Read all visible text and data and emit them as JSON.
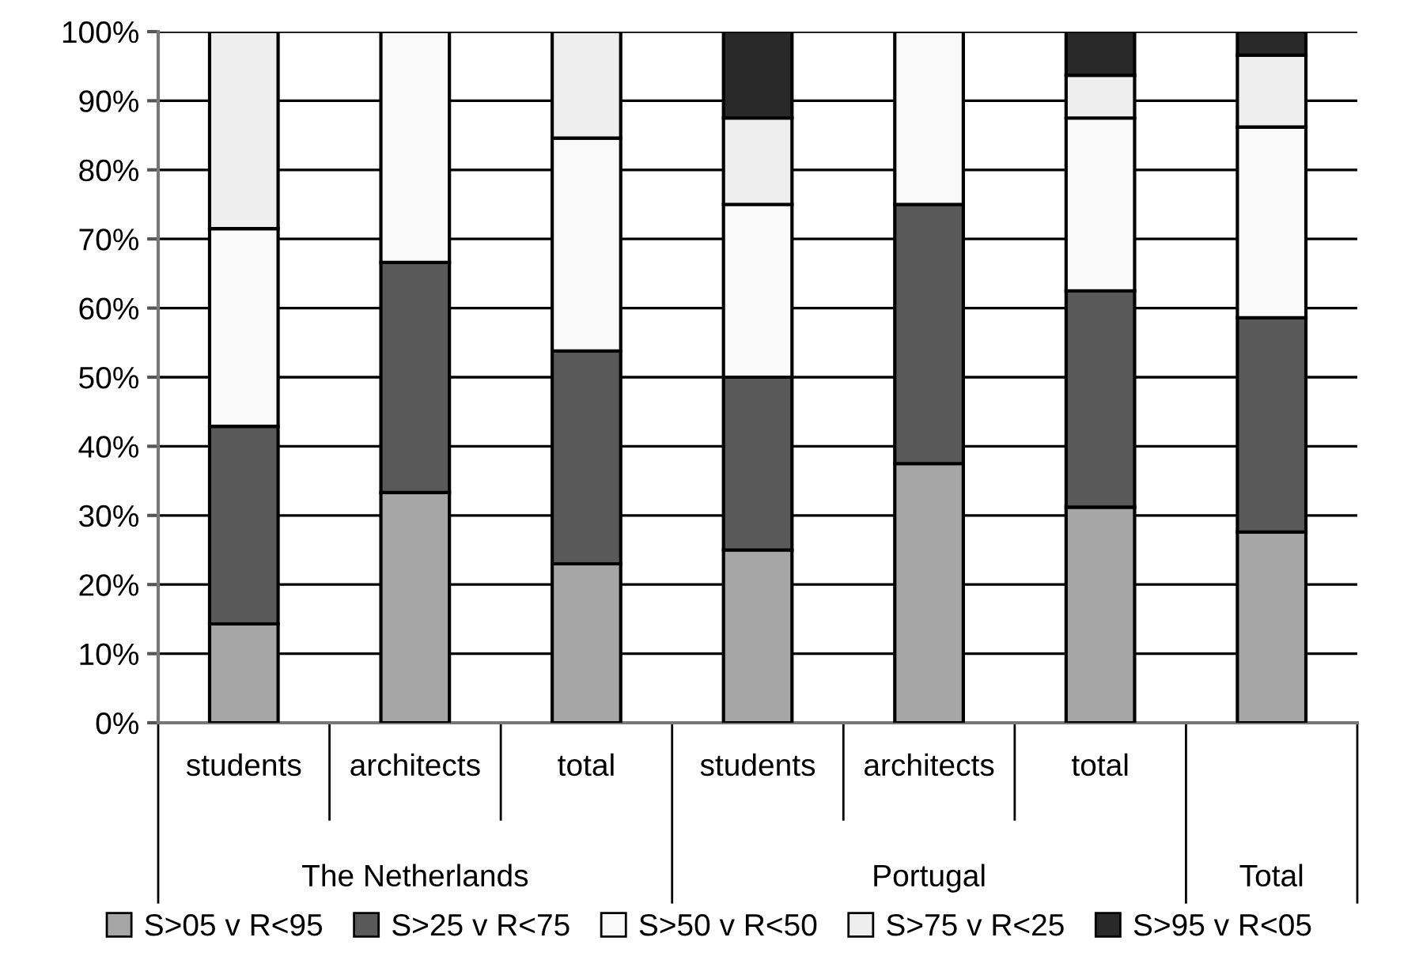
{
  "chart_data": {
    "type": "bar",
    "stacked": true,
    "categories": [
      "students",
      "architects",
      "total",
      "students",
      "architects",
      "total",
      null
    ],
    "annotations": [
      "The Netherlands",
      "Portugal",
      "Total"
    ],
    "series": [
      {
        "name": "S>05 v R<95",
        "color": "#a6a6a6",
        "values": [
          14.3,
          33.3,
          23.0,
          25.0,
          37.5,
          31.2,
          27.6
        ]
      },
      {
        "name": "S>25 v R<75",
        "color": "#595959",
        "values": [
          28.6,
          33.3,
          30.8,
          25.0,
          37.5,
          31.3,
          31.0
        ]
      },
      {
        "name": "S>50 v R<50",
        "color": "#f9f9f9",
        "values": [
          28.6,
          33.4,
          30.8,
          25.0,
          25.0,
          25.0,
          27.6
        ]
      },
      {
        "name": "S>75 v R<25",
        "color": "#eeeeee",
        "values": [
          28.5,
          null,
          15.4,
          12.5,
          null,
          6.2,
          10.4
        ]
      },
      {
        "name": "S>95 v R<05",
        "color": "#292929",
        "values": [
          null,
          null,
          null,
          12.5,
          null,
          6.3,
          3.4
        ]
      }
    ],
    "ylim": [
      0,
      100
    ],
    "yticks": [
      {
        "value": 0,
        "label": "0%"
      },
      {
        "value": 10,
        "label": "10%"
      },
      {
        "value": 20,
        "label": "20%"
      },
      {
        "value": 30,
        "label": "30%"
      },
      {
        "value": 40,
        "label": "40%"
      },
      {
        "value": 50,
        "label": "50%"
      },
      {
        "value": 60,
        "label": "60%"
      },
      {
        "value": 70,
        "label": "70%"
      },
      {
        "value": 80,
        "label": "80%"
      },
      {
        "value": 90,
        "label": "90%"
      },
      {
        "value": 100,
        "label": "100%"
      }
    ],
    "grid": "y",
    "legend": "bottom"
  }
}
